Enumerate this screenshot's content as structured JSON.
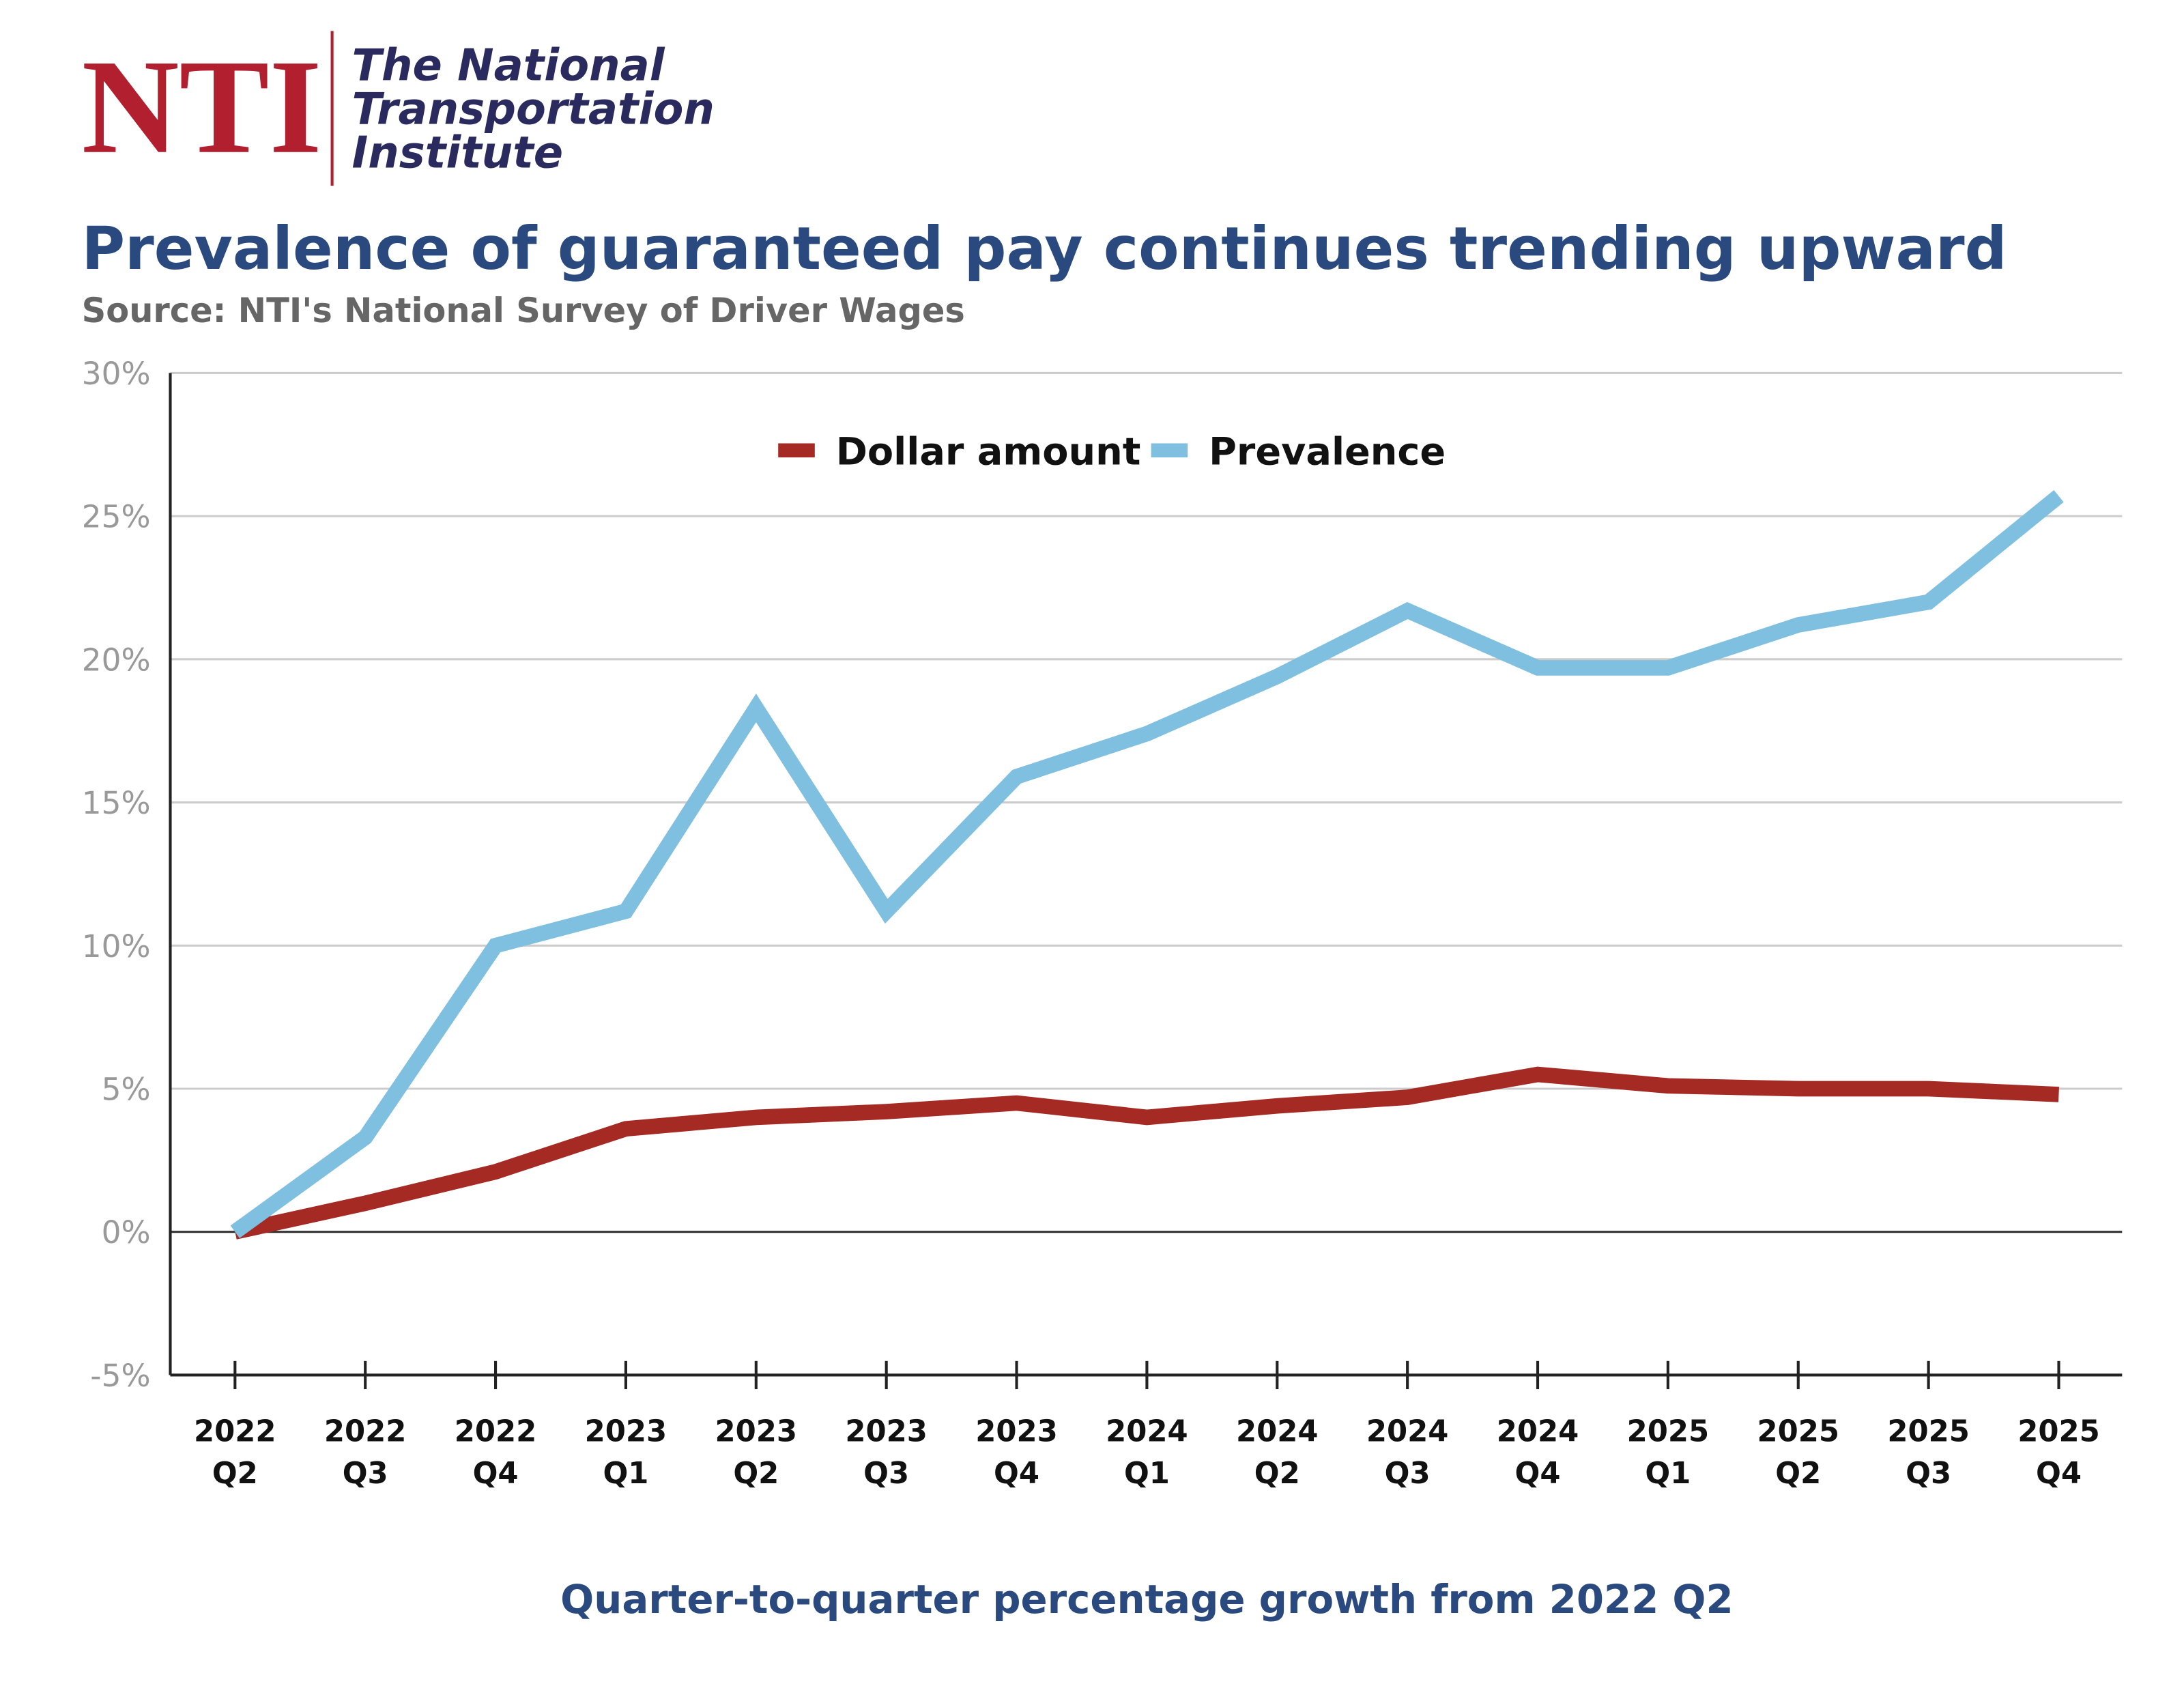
{
  "logo": {
    "abbr": "NTI",
    "name": [
      "The National",
      "Transportation",
      "Institute"
    ]
  },
  "chart_data": {
    "type": "line",
    "title": "Prevalence of guaranteed pay continues trending upward",
    "subtitle": "Source: NTI's National Survey of Driver Wages",
    "x_label": "Quarter-to-quarter percentage growth from 2022 Q2",
    "categories": [
      "2022 Q2",
      "2022 Q3",
      "2022 Q4",
      "2023 Q1",
      "2023 Q2",
      "2023 Q3",
      "2023 Q4",
      "2024 Q1",
      "2024 Q2",
      "2024 Q3",
      "2024 Q4",
      "2025 Q1",
      "2025 Q2",
      "2025 Q3",
      "2025 Q4"
    ],
    "series": [
      {
        "name": "Dollar amount",
        "color": "#a52a24",
        "values": [
          0,
          1.0,
          2.1,
          3.6,
          4.0,
          4.2,
          4.5,
          4.0,
          4.4,
          4.7,
          5.5,
          5.1,
          5.0,
          5.0,
          4.8
        ]
      },
      {
        "name": "Prevalence",
        "color": "#7fbfdf",
        "values": [
          0,
          3.3,
          10.0,
          11.2,
          18.3,
          11.2,
          15.9,
          17.4,
          19.4,
          21.7,
          19.7,
          19.7,
          21.2,
          22.0,
          25.7
        ]
      }
    ],
    "ylim": [
      -5,
      30
    ],
    "yticks": [
      {
        "value": -5,
        "label": "-5%"
      },
      {
        "value": 0,
        "label": "0%"
      },
      {
        "value": 5,
        "label": "5%"
      },
      {
        "value": 10,
        "label": "10%"
      },
      {
        "value": 15,
        "label": "15%"
      },
      {
        "value": 20,
        "label": "20%"
      },
      {
        "value": 25,
        "label": "25%"
      },
      {
        "value": 30,
        "label": "30%"
      }
    ],
    "grid": true,
    "legend": "top"
  }
}
